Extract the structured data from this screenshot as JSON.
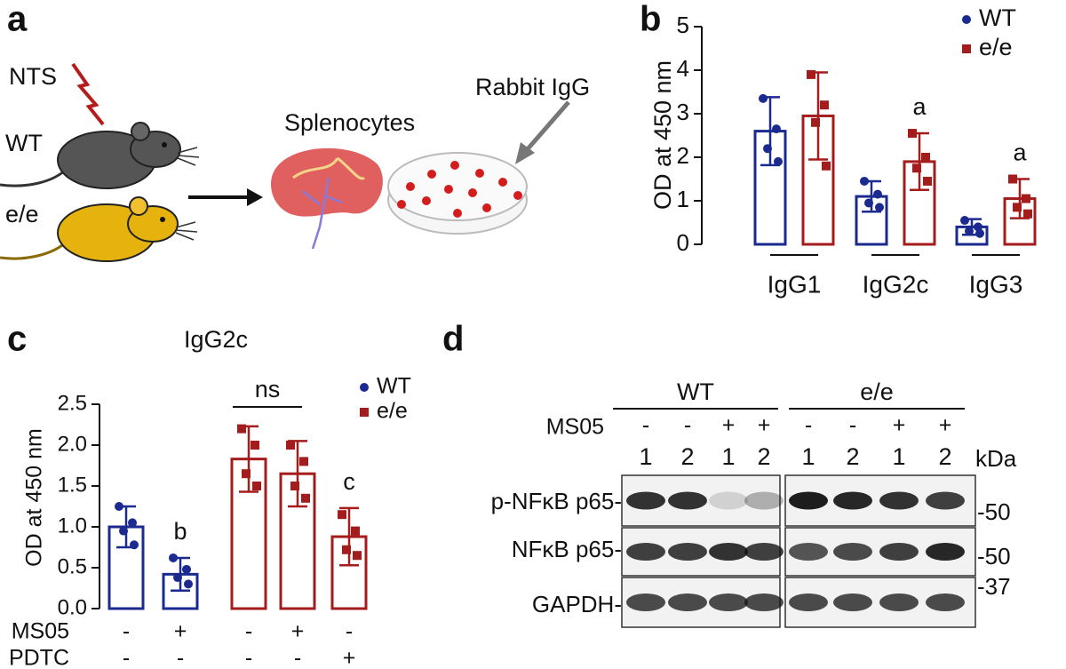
{
  "panel_a": {
    "letter": "a",
    "nts": "NTS",
    "wt": "WT",
    "ee": "e/e",
    "splenocytes": "Splenocytes",
    "rabbit_igg": "Rabbit IgG"
  },
  "chart_data": [
    {
      "type": "bar",
      "panel_label": "b",
      "ylabel": "OD at 450 nm",
      "categories": [
        "IgG1",
        "IgG2c",
        "IgG3"
      ],
      "series": [
        {
          "name": "WT",
          "color": "#1b2a8f",
          "marker": "circle",
          "values": [
            2.6,
            1.1,
            0.4
          ],
          "errors": [
            0.78,
            0.35,
            0.18
          ],
          "points": [
            [
              3.35,
              2.65,
              2.2,
              1.9
            ],
            [
              1.45,
              1.15,
              0.95,
              0.85
            ],
            [
              0.55,
              0.4,
              0.3,
              0.25
            ]
          ],
          "value_annotations": [
            null,
            null,
            null
          ]
        },
        {
          "name": "e/e",
          "color": "#a51c1c",
          "marker": "square",
          "values": [
            2.95,
            1.9,
            1.05
          ],
          "errors": [
            1.0,
            0.65,
            0.45
          ],
          "points": [
            [
              3.9,
              3.2,
              2.8,
              1.8
            ],
            [
              2.55,
              2.0,
              1.75,
              1.45
            ],
            [
              1.5,
              1.05,
              0.85,
              0.7
            ]
          ],
          "value_annotations": [
            null,
            "a",
            "a"
          ]
        }
      ],
      "ylim": [
        0,
        5
      ],
      "yticks": [
        0,
        1,
        2,
        3,
        4,
        5
      ],
      "legend": "top-right"
    },
    {
      "type": "bar",
      "panel_label": "c",
      "title": "IgG2c",
      "ylabel": "OD at 450 nm",
      "categories": [
        null,
        null,
        null,
        null,
        null
      ],
      "series": [
        {
          "name": "WT",
          "color": "#1b2a8f",
          "marker": "circle",
          "values": [
            1.0,
            0.42,
            null,
            null,
            null
          ],
          "errors": [
            0.25,
            0.2,
            null,
            null,
            null
          ],
          "points": [
            [
              1.25,
              1.05,
              0.95,
              0.78
            ],
            [
              0.62,
              0.48,
              0.38,
              0.3
            ],
            null,
            null,
            null
          ],
          "value_annotations": [
            null,
            "b",
            null,
            null,
            null
          ]
        },
        {
          "name": "e/e",
          "color": "#a51c1c",
          "marker": "square",
          "values": [
            null,
            null,
            1.83,
            1.65,
            0.88
          ],
          "errors": [
            null,
            null,
            0.4,
            0.4,
            0.35
          ],
          "points": [
            null,
            null,
            [
              2.2,
              2.0,
              1.65,
              1.5
            ],
            [
              2.0,
              1.8,
              1.5,
              1.35
            ],
            [
              1.15,
              0.95,
              0.72,
              0.65
            ]
          ],
          "value_annotations": [
            null,
            null,
            null,
            null,
            "c"
          ]
        }
      ],
      "bracket_label": "ns",
      "conditions": [
        {
          "name": "MS05",
          "values": [
            "-",
            "+",
            "-",
            "+",
            "-"
          ]
        },
        {
          "name": "PDTC",
          "values": [
            "-",
            "-",
            "-",
            "-",
            "+"
          ]
        }
      ],
      "ylim": [
        0,
        2.5
      ],
      "yticks": [
        {
          "value": 0,
          "label": "0.0"
        },
        {
          "value": 0.5,
          "label": "0.5"
        },
        {
          "value": 1,
          "label": "1.0"
        },
        {
          "value": 1.5,
          "label": "1.5"
        },
        {
          "value": 2,
          "label": "2.0"
        },
        {
          "value": 2.5,
          "label": "2.5"
        }
      ],
      "legend": "top-right"
    }
  ],
  "panel_d": {
    "letter": "d",
    "groups": [
      "WT",
      "e/e"
    ],
    "treatment_label": "MS05",
    "treatment": [
      "-",
      "-",
      "+",
      "+",
      "-",
      "-",
      "+",
      "+"
    ],
    "lanes": [
      "1",
      "2",
      "1",
      "2",
      "1",
      "2",
      "1",
      "2"
    ],
    "kda_label": "kDa",
    "rows": [
      {
        "label": "p-NFκB p65-",
        "marker": "-50"
      },
      {
        "label": "NFκB p65-",
        "marker": "-50"
      },
      {
        "label": "GAPDH-",
        "marker": "-37"
      }
    ]
  }
}
